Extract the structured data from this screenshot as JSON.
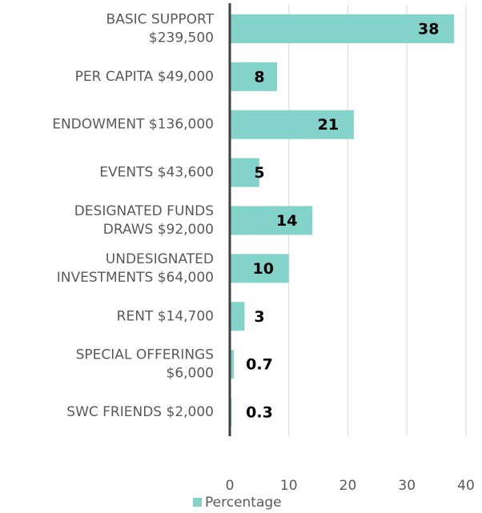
{
  "chart_data": {
    "type": "bar",
    "orientation": "horizontal",
    "categories": [
      "BASIC SUPPORT\n$239,500",
      "PER CAPITA $49,000",
      "ENDOWMENT $136,000",
      "EVENTS $43,600",
      "DESIGNATED FUNDS\nDRAWS $92,000",
      "UNDESIGNATED\nINVESTMENTS $64,000",
      "RENT $14,700",
      "SPECIAL OFFERINGS\n$6,000",
      "SWC FRIENDS $2,000"
    ],
    "series": [
      {
        "name": "Percentage",
        "color": "#84d3cb",
        "values": [
          38,
          8,
          21,
          5,
          14,
          10,
          2.5,
          0.7,
          0.3
        ],
        "value_labels": [
          "38",
          "8",
          "21",
          "5",
          "14",
          "10",
          "3",
          "0.7",
          "0.3"
        ]
      }
    ],
    "xlim": [
      0,
      40
    ],
    "xticks": [
      0,
      10,
      20,
      30,
      40
    ],
    "grid": true,
    "legend": "bottom"
  }
}
